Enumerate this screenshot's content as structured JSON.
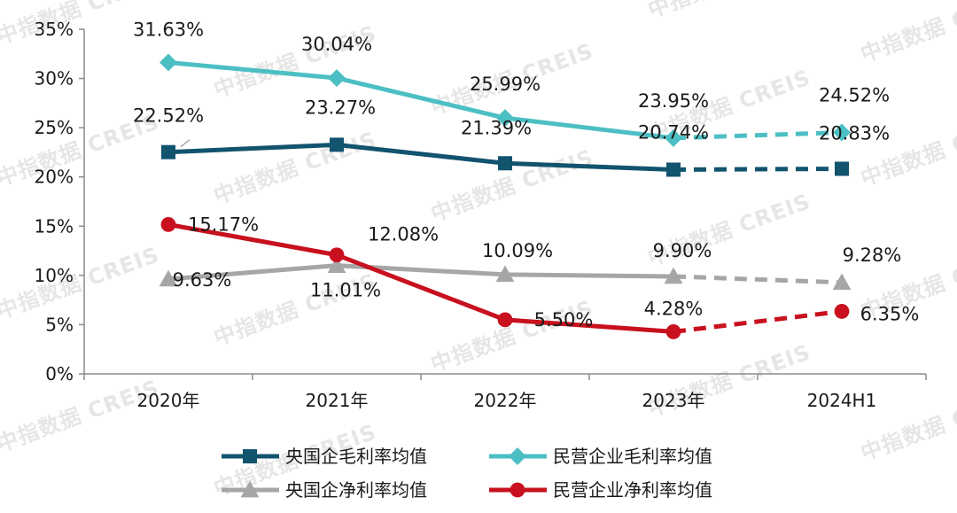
{
  "watermark": "中指数据 CREIS",
  "chart_data": {
    "type": "line",
    "categories": [
      "2020年",
      "2021年",
      "2022年",
      "2023年",
      "2024H1"
    ],
    "y_ticks": [
      "0%",
      "5%",
      "10%",
      "15%",
      "20%",
      "25%",
      "30%",
      "35%"
    ],
    "ylim": [
      0,
      35
    ],
    "y_unit": "%",
    "grid": false,
    "legend_position": "bottom",
    "dashed_from_category": "2023年",
    "series": [
      {
        "name": "央国企毛利率均值",
        "color": "#12536e",
        "marker": "square",
        "values": [
          22.52,
          23.27,
          21.39,
          20.74,
          20.83
        ],
        "labels": [
          "22.52%",
          "23.27%",
          "21.39%",
          "20.74%",
          "20.83%"
        ]
      },
      {
        "name": "民营企业毛利率均值",
        "color": "#4cbfc4",
        "marker": "diamond",
        "values": [
          31.63,
          30.04,
          25.99,
          23.95,
          24.52
        ],
        "labels": [
          "31.63%",
          "30.04%",
          "25.99%",
          "23.95%",
          "24.52%"
        ]
      },
      {
        "name": "央国企净利率均值",
        "color": "#a6a6a6",
        "marker": "triangle",
        "values": [
          9.63,
          11.01,
          10.09,
          9.9,
          9.28
        ],
        "labels": [
          "9.63%",
          "11.01%",
          "10.09%",
          "9.90%",
          "9.28%"
        ]
      },
      {
        "name": "民营企业净利率均值",
        "color": "#c8101e",
        "marker": "circle",
        "values": [
          15.17,
          12.08,
          5.5,
          4.28,
          6.35
        ],
        "labels": [
          "15.17%",
          "12.08%",
          "5.50%",
          "4.28%",
          "6.35%"
        ]
      }
    ]
  }
}
